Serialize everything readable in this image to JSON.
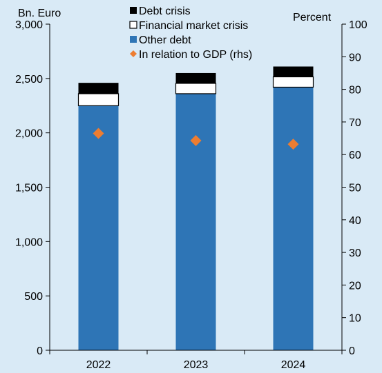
{
  "chart_data": {
    "type": "bar",
    "stacked": true,
    "title": "",
    "categories": [
      "2022",
      "2023",
      "2024"
    ],
    "left_axis": {
      "unit_label": "Bn. Euro",
      "min": 0,
      "max": 3000,
      "ticks": [
        0,
        500,
        1000,
        1500,
        2000,
        2500,
        3000
      ],
      "tick_labels": [
        "0",
        "500",
        "1,000",
        "1,500",
        "2,000",
        "2,500",
        "3,000"
      ]
    },
    "right_axis": {
      "unit_label": "Percent",
      "min": 0,
      "max": 100,
      "ticks": [
        0,
        10,
        20,
        30,
        40,
        50,
        60,
        70,
        80,
        90,
        100
      ],
      "tick_labels": [
        "0",
        "10",
        "20",
        "30",
        "40",
        "50",
        "60",
        "70",
        "80",
        "90",
        "100"
      ]
    },
    "series": [
      {
        "name": "Other debt",
        "axis": "left",
        "kind": "bar",
        "color": "#2e75b6",
        "values": [
          2250,
          2360,
          2420
        ]
      },
      {
        "name": "Financial market crisis",
        "axis": "left",
        "kind": "bar",
        "color": "#ffffff",
        "values": [
          110,
          95,
          95
        ]
      },
      {
        "name": "Debt crisis",
        "axis": "left",
        "kind": "bar",
        "color": "#000000",
        "values": [
          100,
          95,
          95
        ]
      },
      {
        "name": "In relation to GDP (rhs)",
        "axis": "right",
        "kind": "scatter",
        "color": "#ed7d31",
        "values": [
          66.5,
          64.3,
          63.2
        ]
      }
    ],
    "legend": {
      "placement": "top-left",
      "order": [
        "Debt crisis",
        "Financial market crisis",
        "Other debt",
        "In relation to GDP (rhs)"
      ]
    },
    "grid": false
  }
}
